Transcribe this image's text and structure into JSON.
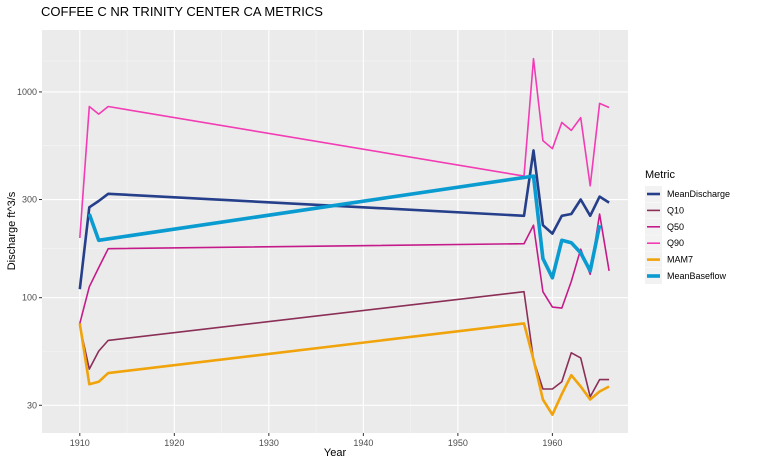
{
  "chart_data": {
    "type": "line",
    "title": "COFFEE C NR TRINITY CENTER CA  METRICS",
    "xlabel": "Year",
    "ylabel": "Discharge ft^3/s",
    "y_scale": "log10",
    "xlim": [
      1906,
      1968
    ],
    "ylim": [
      22,
      2000
    ],
    "x_ticks": [
      1910,
      1920,
      1930,
      1940,
      1950,
      1960
    ],
    "y_ticks": [
      30,
      100,
      300,
      1000
    ],
    "grid": true,
    "legend": {
      "title": "Metric",
      "position": "right"
    },
    "series": [
      {
        "name": "MeanDischarge",
        "color": "#253f8a",
        "width": 2.6,
        "points": [
          [
            1910,
            110
          ],
          [
            1911,
            275
          ],
          [
            1912,
            295
          ],
          [
            1913,
            320
          ],
          [
            1957,
            250
          ],
          [
            1958,
            520
          ],
          [
            1959,
            225
          ],
          [
            1960,
            205
          ],
          [
            1961,
            250
          ],
          [
            1962,
            255
          ],
          [
            1963,
            300
          ],
          [
            1964,
            250
          ],
          [
            1965,
            310
          ],
          [
            1966,
            290
          ]
        ]
      },
      {
        "name": "Q10",
        "color": "#8b2f57",
        "width": 1.6,
        "points": [
          [
            1910,
            73
          ],
          [
            1911,
            45
          ],
          [
            1912,
            55
          ],
          [
            1913,
            62
          ],
          [
            1957,
            107
          ],
          [
            1958,
            50
          ],
          [
            1959,
            36
          ],
          [
            1960,
            36
          ],
          [
            1961,
            39
          ],
          [
            1962,
            54
          ],
          [
            1963,
            51
          ],
          [
            1964,
            33
          ],
          [
            1965,
            40
          ],
          [
            1966,
            40
          ]
        ]
      },
      {
        "name": "Q50",
        "color": "#c51b8a",
        "width": 1.6,
        "points": [
          [
            1910,
            75
          ],
          [
            1911,
            113
          ],
          [
            1912,
            140
          ],
          [
            1913,
            173
          ],
          [
            1957,
            183
          ],
          [
            1958,
            225
          ],
          [
            1959,
            107
          ],
          [
            1960,
            90
          ],
          [
            1961,
            89
          ],
          [
            1962,
            120
          ],
          [
            1963,
            172
          ],
          [
            1964,
            130
          ],
          [
            1965,
            255
          ],
          [
            1966,
            135
          ]
        ]
      },
      {
        "name": "Q90",
        "color": "#f23bb4",
        "width": 1.6,
        "points": [
          [
            1910,
            195
          ],
          [
            1911,
            850
          ],
          [
            1912,
            780
          ],
          [
            1913,
            850
          ],
          [
            1957,
            390
          ],
          [
            1958,
            1450
          ],
          [
            1959,
            580
          ],
          [
            1960,
            530
          ],
          [
            1961,
            710
          ],
          [
            1962,
            650
          ],
          [
            1963,
            750
          ],
          [
            1964,
            350
          ],
          [
            1965,
            880
          ],
          [
            1966,
            840
          ]
        ]
      },
      {
        "name": "MAM7",
        "color": "#f0a30a",
        "width": 2.6,
        "points": [
          [
            1910,
            75
          ],
          [
            1911,
            38
          ],
          [
            1912,
            39
          ],
          [
            1913,
            43
          ],
          [
            1957,
            75
          ],
          [
            1958,
            50
          ],
          [
            1959,
            32
          ],
          [
            1960,
            27
          ],
          [
            1961,
            34
          ],
          [
            1962,
            42
          ],
          [
            1963,
            37
          ],
          [
            1964,
            32
          ],
          [
            1965,
            35
          ],
          [
            1966,
            37
          ]
        ]
      },
      {
        "name": "MeanBaseflow",
        "color": "#0a9bd1",
        "width": 3.6,
        "points": [
          [
            1911,
            255
          ],
          [
            1912,
            190
          ],
          [
            1958,
            390
          ],
          [
            1959,
            155
          ],
          [
            1960,
            125
          ],
          [
            1961,
            190
          ],
          [
            1962,
            185
          ],
          [
            1963,
            165
          ],
          [
            1964,
            135
          ],
          [
            1965,
            225
          ]
        ]
      }
    ]
  }
}
